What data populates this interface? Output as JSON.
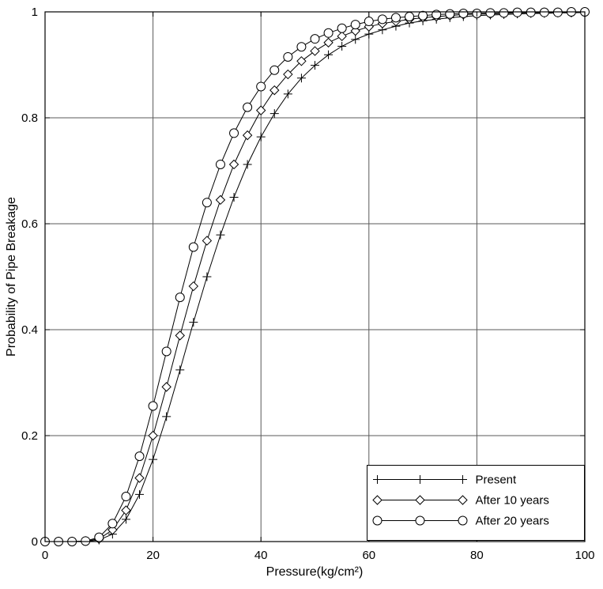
{
  "chart_data": {
    "type": "line",
    "title": "",
    "xlabel": "Pressure(kg/cm²)",
    "ylabel": "Probability of Pipe Breakage",
    "xlim": [
      0,
      100
    ],
    "ylim": [
      0,
      1
    ],
    "xticks": [
      0,
      20,
      40,
      60,
      80,
      100
    ],
    "xtick_labels": [
      "0",
      "20",
      "40",
      "60",
      "80",
      "100"
    ],
    "yticks": [
      0,
      0.2,
      0.4,
      0.6,
      0.8,
      1
    ],
    "ytick_labels": [
      "0",
      "0.2",
      "0.4",
      "0.6",
      "0.8",
      "1"
    ],
    "grid": true,
    "legend_position": "bottom-right",
    "line_color": "#000000",
    "grid_color": "#595959",
    "background_color": "#ffffff",
    "x": [
      0,
      2.5,
      5,
      7.5,
      10,
      12.5,
      15,
      17.5,
      20,
      22.5,
      25,
      27.5,
      30,
      32.5,
      35,
      37.5,
      40,
      42.5,
      45,
      47.5,
      50,
      52.5,
      55,
      57.5,
      60,
      62.5,
      65,
      67.5,
      70,
      72.5,
      75,
      77.5,
      80,
      82.5,
      85,
      87.5,
      90,
      92.5,
      95,
      97.5,
      100
    ],
    "series": [
      {
        "name": "Present",
        "marker": "plus",
        "values": [
          0,
          0,
          0,
          0,
          0.003,
          0.014,
          0.042,
          0.089,
          0.155,
          0.236,
          0.324,
          0.414,
          0.5,
          0.579,
          0.65,
          0.712,
          0.764,
          0.808,
          0.845,
          0.875,
          0.899,
          0.919,
          0.935,
          0.948,
          0.958,
          0.966,
          0.973,
          0.979,
          0.983,
          0.986,
          0.989,
          0.991,
          0.993,
          0.994,
          0.995,
          0.996,
          0.997,
          0.997,
          0.998,
          0.998,
          0.999
        ]
      },
      {
        "name": "After 10 years",
        "marker": "diamond",
        "values": [
          0,
          0,
          0,
          0.001,
          0.005,
          0.022,
          0.059,
          0.12,
          0.2,
          0.292,
          0.389,
          0.482,
          0.568,
          0.645,
          0.712,
          0.767,
          0.814,
          0.852,
          0.882,
          0.907,
          0.926,
          0.942,
          0.954,
          0.964,
          0.972,
          0.978,
          0.982,
          0.986,
          0.989,
          0.991,
          0.993,
          0.995,
          0.996,
          0.996,
          0.997,
          0.998,
          0.998,
          0.999,
          0.999,
          0.999,
          0.999
        ]
      },
      {
        "name": "After 20 years",
        "marker": "circle",
        "values": [
          0,
          0,
          0,
          0.001,
          0.008,
          0.034,
          0.085,
          0.161,
          0.256,
          0.359,
          0.461,
          0.556,
          0.64,
          0.712,
          0.771,
          0.82,
          0.859,
          0.89,
          0.915,
          0.934,
          0.949,
          0.96,
          0.969,
          0.976,
          0.982,
          0.986,
          0.989,
          0.991,
          0.993,
          0.995,
          0.996,
          0.997,
          0.997,
          0.998,
          0.998,
          0.999,
          0.999,
          0.999,
          0.999,
          1,
          1
        ]
      }
    ]
  }
}
